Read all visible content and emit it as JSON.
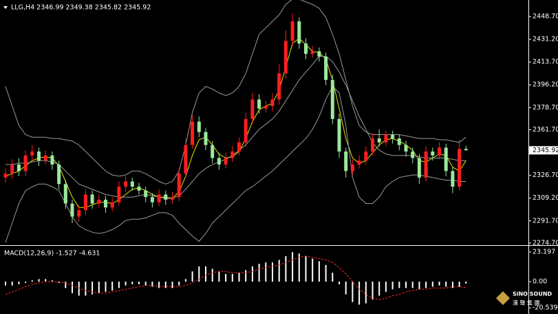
{
  "chart_data": [
    {
      "type": "candlestick",
      "title": "LLG,H4 2346.99 2349.38 2345.82 2345.92",
      "open": [
        2325,
        2328,
        2335,
        2330,
        2342,
        2345,
        2338,
        2342,
        2335,
        2320,
        2305,
        2295,
        2300,
        2312,
        2305,
        2308,
        2302,
        2306,
        2318,
        2322,
        2318,
        2315,
        2310,
        2306,
        2312,
        2308,
        2310,
        2328,
        2350,
        2368,
        2360,
        2350,
        2340,
        2335,
        2340,
        2345,
        2352,
        2370,
        2385,
        2378,
        2380,
        2385,
        2405,
        2430,
        2445,
        2428,
        2420,
        2422,
        2418,
        2400,
        2370,
        2345,
        2330,
        2335,
        2338,
        2345,
        2355,
        2352,
        2358,
        2355,
        2350,
        2345,
        2340,
        2325,
        2345,
        2342,
        2348,
        2330,
        2318,
        2346.99
      ],
      "high": [
        2332,
        2339,
        2340,
        2346,
        2350,
        2348,
        2346,
        2345,
        2338,
        2323,
        2308,
        2304,
        2316,
        2315,
        2312,
        2311,
        2310,
        2322,
        2326,
        2325,
        2321,
        2318,
        2313,
        2316,
        2315,
        2314,
        2332,
        2355,
        2373,
        2372,
        2363,
        2353,
        2344,
        2344,
        2349,
        2356,
        2375,
        2390,
        2389,
        2384,
        2390,
        2412,
        2438,
        2451,
        2448,
        2432,
        2426,
        2425,
        2421,
        2404,
        2374,
        2348,
        2339,
        2342,
        2349,
        2359,
        2362,
        2361,
        2361,
        2358,
        2353,
        2348,
        2343,
        2349,
        2348,
        2352,
        2351,
        2333,
        2354,
        2349.38
      ],
      "low": [
        2321,
        2324,
        2326,
        2326,
        2338,
        2334,
        2335,
        2331,
        2316,
        2301,
        2290,
        2291,
        2296,
        2301,
        2302,
        2298,
        2299,
        2303,
        2314,
        2315,
        2312,
        2306,
        2302,
        2303,
        2304,
        2305,
        2307,
        2325,
        2347,
        2356,
        2346,
        2336,
        2331,
        2332,
        2337,
        2342,
        2349,
        2366,
        2374,
        2375,
        2376,
        2381,
        2401,
        2426,
        2424,
        2416,
        2417,
        2414,
        2396,
        2366,
        2340,
        2325,
        2327,
        2332,
        2335,
        2342,
        2349,
        2349,
        2351,
        2346,
        2341,
        2336,
        2320,
        2322,
        2338,
        2339,
        2326,
        2313,
        2315,
        2345.82
      ],
      "close": [
        2328,
        2335,
        2330,
        2342,
        2345,
        2338,
        2342,
        2335,
        2320,
        2305,
        2295,
        2300,
        2312,
        2305,
        2308,
        2302,
        2306,
        2318,
        2322,
        2318,
        2315,
        2310,
        2306,
        2312,
        2308,
        2310,
        2328,
        2350,
        2368,
        2360,
        2350,
        2340,
        2335,
        2340,
        2345,
        2352,
        2370,
        2385,
        2378,
        2380,
        2385,
        2405,
        2430,
        2445,
        2428,
        2420,
        2422,
        2418,
        2400,
        2370,
        2345,
        2330,
        2335,
        2338,
        2345,
        2355,
        2352,
        2358,
        2355,
        2350,
        2345,
        2340,
        2325,
        2345,
        2342,
        2348,
        2330,
        2318,
        2346.99,
        2345.92
      ],
      "up_color": "#ff1e1e",
      "down_color": "#9be89b",
      "lines": [
        {
          "color": "#e6e600",
          "values": [
            2326,
            2328,
            2330,
            2334,
            2338,
            2340,
            2341,
            2340,
            2334,
            2322,
            2310,
            2302,
            2302,
            2304,
            2306,
            2306,
            2305,
            2308,
            2312,
            2316,
            2317,
            2315,
            2312,
            2310,
            2310,
            2309,
            2314,
            2326,
            2342,
            2354,
            2356,
            2350,
            2343,
            2340,
            2341,
            2345,
            2355,
            2368,
            2377,
            2380,
            2382,
            2392,
            2410,
            2428,
            2432,
            2427,
            2422,
            2421,
            2416,
            2400,
            2378,
            2355,
            2340,
            2336,
            2338,
            2344,
            2350,
            2354,
            2355,
            2353,
            2350,
            2346,
            2338,
            2337,
            2340,
            2343,
            2342,
            2333,
            2330,
            2338
          ]
        },
        {
          "color": "#9a9a9a",
          "values": [
            2335,
            2335,
            2336,
            2336,
            2337,
            2338,
            2338,
            2337,
            2335,
            2330,
            2325,
            2320,
            2318,
            2316,
            2314,
            2312,
            2311,
            2310,
            2310,
            2310,
            2311,
            2312,
            2311,
            2310,
            2309,
            2309,
            2311,
            2316,
            2322,
            2328,
            2332,
            2335,
            2337,
            2339,
            2342,
            2346,
            2350,
            2356,
            2362,
            2366,
            2370,
            2376,
            2384,
            2392,
            2400,
            2406,
            2412,
            2418,
            2418,
            2414,
            2406,
            2396,
            2384,
            2372,
            2362,
            2352,
            2346,
            2343,
            2342,
            2342,
            2342,
            2342,
            2341,
            2340,
            2340,
            2340,
            2340,
            2339,
            2338,
            2338
          ]
        },
        {
          "color": "#9a9a9a",
          "values": [
            2395,
            2380,
            2365,
            2358,
            2356,
            2356,
            2356,
            2355,
            2355,
            2354,
            2353,
            2350,
            2345,
            2340,
            2335,
            2330,
            2327,
            2326,
            2327,
            2330,
            2330,
            2328,
            2325,
            2322,
            2320,
            2322,
            2330,
            2350,
            2375,
            2390,
            2395,
            2393,
            2390,
            2388,
            2390,
            2395,
            2405,
            2420,
            2435,
            2440,
            2445,
            2450,
            2458,
            2462,
            2462,
            2460,
            2458,
            2455,
            2448,
            2435,
            2420,
            2400,
            2380,
            2365,
            2360,
            2358,
            2358,
            2358,
            2358,
            2358,
            2357,
            2356,
            2355,
            2355,
            2355,
            2354,
            2354,
            2353,
            2352,
            2356
          ]
        },
        {
          "color": "#9a9a9a",
          "values": [
            2275,
            2290,
            2305,
            2315,
            2318,
            2320,
            2320,
            2318,
            2315,
            2305,
            2295,
            2288,
            2285,
            2283,
            2282,
            2283,
            2285,
            2288,
            2292,
            2293,
            2293,
            2294,
            2296,
            2298,
            2298,
            2296,
            2290,
            2285,
            2280,
            2276,
            2282,
            2290,
            2295,
            2300,
            2305,
            2310,
            2315,
            2318,
            2322,
            2326,
            2330,
            2335,
            2340,
            2345,
            2350,
            2355,
            2362,
            2372,
            2385,
            2395,
            2390,
            2365,
            2325,
            2310,
            2305,
            2305,
            2310,
            2318,
            2322,
            2325,
            2326,
            2327,
            2327,
            2326,
            2325,
            2324,
            2323,
            2323,
            2322,
            2322
          ]
        }
      ],
      "last_price": 2345.92,
      "ylim": [
        2273.6,
        2461.4
      ],
      "yticks": [
        {
          "value": 2448.7,
          "label": "2448.70"
        },
        {
          "value": 2431.2,
          "label": "2431.20"
        },
        {
          "value": 2413.7,
          "label": "2413.70"
        },
        {
          "value": 2396.2,
          "label": "2396.20"
        },
        {
          "value": 2378.7,
          "label": "2378.70"
        },
        {
          "value": 2361.7,
          "label": "2361.70"
        },
        {
          "value": 2326.7,
          "label": "2326.70"
        },
        {
          "value": 2309.2,
          "label": "2309.20"
        },
        {
          "value": 2291.7,
          "label": "2291.70"
        },
        {
          "value": 2274.7,
          "label": "2274.70"
        }
      ]
    },
    {
      "type": "macd",
      "title": "MACD(12,26,9) -1.527 -4.631",
      "histogram": {
        "color": "#ffffff",
        "values": [
          -3,
          -3,
          -2,
          -1,
          1,
          2,
          2,
          1,
          -1,
          -5,
          -9,
          -11,
          -11,
          -10,
          -9,
          -8,
          -7,
          -5,
          -3,
          -2,
          -2,
          -3,
          -4,
          -5,
          -5,
          -5,
          -3,
          2,
          8,
          12,
          12,
          10,
          8,
          6,
          6,
          7,
          9,
          12,
          14,
          15,
          15,
          17,
          20,
          23,
          22,
          20,
          18,
          16,
          13,
          7,
          -2,
          -10,
          -16,
          -18,
          -17,
          -14,
          -11,
          -8,
          -6,
          -5,
          -5,
          -5,
          -6,
          -5,
          -4,
          -3,
          -4,
          -5,
          -4,
          -1.527
        ]
      },
      "signal": {
        "color": "#ff2a2a",
        "values": [
          -10,
          -8,
          -6,
          -4,
          -2,
          -1,
          0,
          0,
          0,
          -1,
          -3,
          -5,
          -7,
          -8,
          -9,
          -9,
          -8,
          -7,
          -6,
          -5,
          -4,
          -3,
          -3,
          -4,
          -4,
          -4,
          -4,
          -3,
          -1,
          2,
          5,
          7,
          8,
          8,
          7,
          7,
          7,
          8,
          10,
          11,
          12,
          13,
          15,
          17,
          19,
          20,
          19,
          18,
          17,
          15,
          11,
          6,
          0,
          -6,
          -10,
          -13,
          -14,
          -13,
          -11,
          -10,
          -8,
          -7,
          -6,
          -6,
          -5,
          -5,
          -5,
          -4,
          -4,
          -4.631
        ]
      },
      "ylim": [
        -24.8,
        27.5
      ],
      "yticks": [
        23.197,
        {
          "value": 0,
          "label": "0.00"
        },
        -20.539
      ]
    }
  ],
  "logo": {
    "name": "SiNO SOUND",
    "chinese": "漢 聲 集 團"
  }
}
